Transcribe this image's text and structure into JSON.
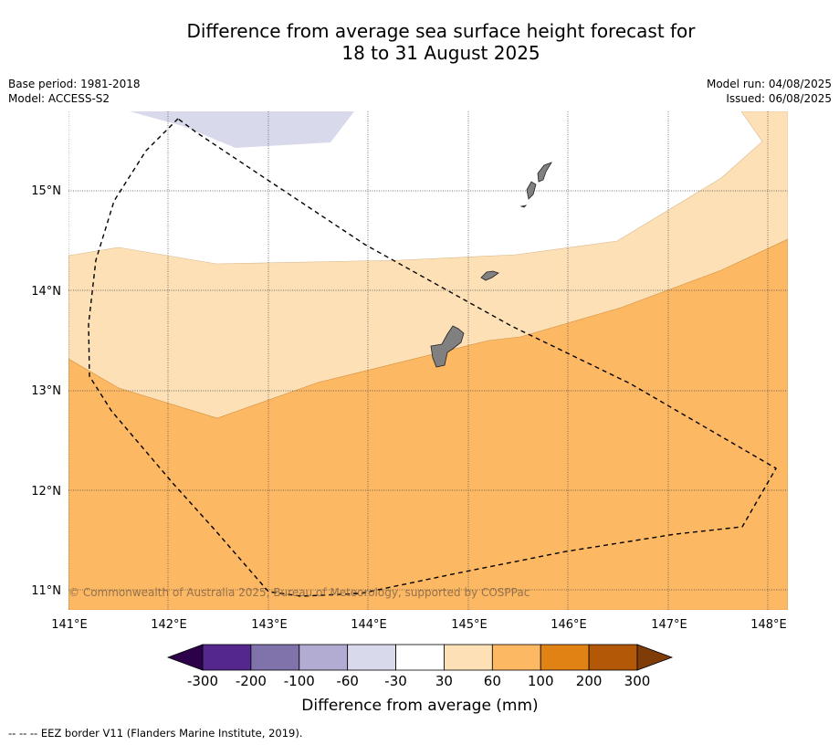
{
  "title_line1": "Difference from average sea surface height forecast for",
  "title_line2": "18 to 31 August 2025",
  "meta_left": {
    "base_period": "Base period: 1981-2018",
    "model": "Model: ACCESS-S2"
  },
  "meta_right": {
    "model_run": "Model run: 04/08/2025",
    "issued": "Issued: 06/08/2025"
  },
  "copyright": "© Commonwealth of Australia 2025, Bureau of Meteorology, supported by COSPPac",
  "lon_labels": [
    "141°E",
    "142°E",
    "143°E",
    "144°E",
    "145°E",
    "146°E",
    "147°E",
    "148°E"
  ],
  "lat_labels": [
    "15°N",
    "14°N",
    "13°N",
    "12°N",
    "11°N"
  ],
  "colorbar": {
    "label": "Difference from average (mm)",
    "ticks": [
      "-300",
      "-200",
      "-100",
      "-60",
      "-30",
      "30",
      "60",
      "100",
      "200",
      "300"
    ],
    "colors": [
      "#54278f",
      "#8073ac",
      "#b2abd2",
      "#d8daeb",
      "#ffffff",
      "#fee0b6",
      "#fdb863",
      "#e08214",
      "#b35806"
    ],
    "under_color": "#2d004b",
    "over_color": "#7f3b08"
  },
  "footer": "--  --  -- EEZ border V11 (Flanders Marine Institute, 2019)."
}
